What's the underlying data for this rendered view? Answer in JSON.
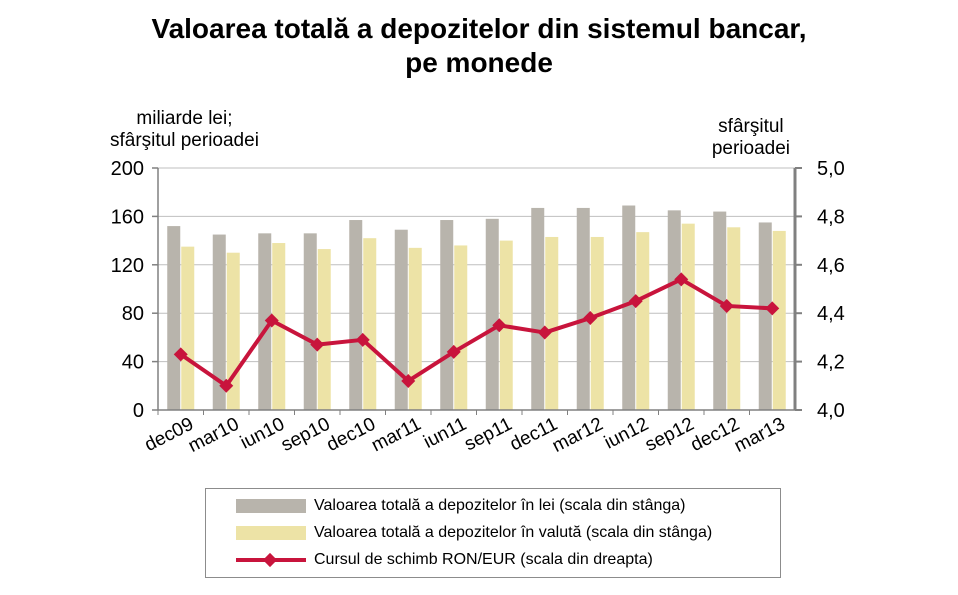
{
  "title": {
    "line1": "Valoarea totală a depozitelor din sistemul bancar,",
    "line2": "pe monede"
  },
  "left_axis_note": [
    "miliarde lei;",
    "sfârşitul perioadei"
  ],
  "right_axis_note": [
    "sfârşitul",
    "perioadei"
  ],
  "colors": {
    "lei": "#b8b4ac",
    "valuta": "#ede3a6",
    "ron_eur": "#c8143c",
    "grid": "#bfbfbf"
  },
  "chart_data": {
    "type": "bar",
    "categories": [
      "dec09",
      "mar10",
      "iun10",
      "sep10",
      "dec10",
      "mar11",
      "iun11",
      "sep11",
      "dec11",
      "mar12",
      "iun12",
      "sep12",
      "dec12",
      "mar13"
    ],
    "y_left": {
      "min": 0,
      "max": 200,
      "ticks": [
        "0",
        "40",
        "80",
        "120",
        "160",
        "200"
      ],
      "tick_values": [
        0,
        40,
        80,
        120,
        160,
        200
      ]
    },
    "y_right": {
      "min": 4.0,
      "max": 5.0,
      "ticks": [
        "4,0",
        "4,2",
        "4,4",
        "4,6",
        "4,8",
        "5,0"
      ],
      "tick_values": [
        4.0,
        4.2,
        4.4,
        4.6,
        4.8,
        5.0
      ]
    },
    "grid": true,
    "series": [
      {
        "name": "Valoarea totală a depozitelor în lei (scala din stânga)",
        "type": "bar",
        "axis": "left",
        "values": [
          152,
          145,
          146,
          146,
          157,
          149,
          157,
          158,
          167,
          167,
          169,
          165,
          164,
          155
        ]
      },
      {
        "name": "Valoarea totală a depozitelor în valută (scala din stânga)",
        "type": "bar",
        "axis": "left",
        "values": [
          135,
          130,
          138,
          133,
          142,
          134,
          136,
          140,
          143,
          143,
          147,
          154,
          151,
          148
        ]
      },
      {
        "name": "Cursul de schimb RON/EUR (scala din dreapta)",
        "type": "line",
        "axis": "right",
        "values": [
          4.23,
          4.1,
          4.37,
          4.27,
          4.29,
          4.12,
          4.24,
          4.35,
          4.32,
          4.38,
          4.45,
          4.54,
          4.43,
          4.42
        ]
      }
    ],
    "legend_position": "bottom"
  }
}
